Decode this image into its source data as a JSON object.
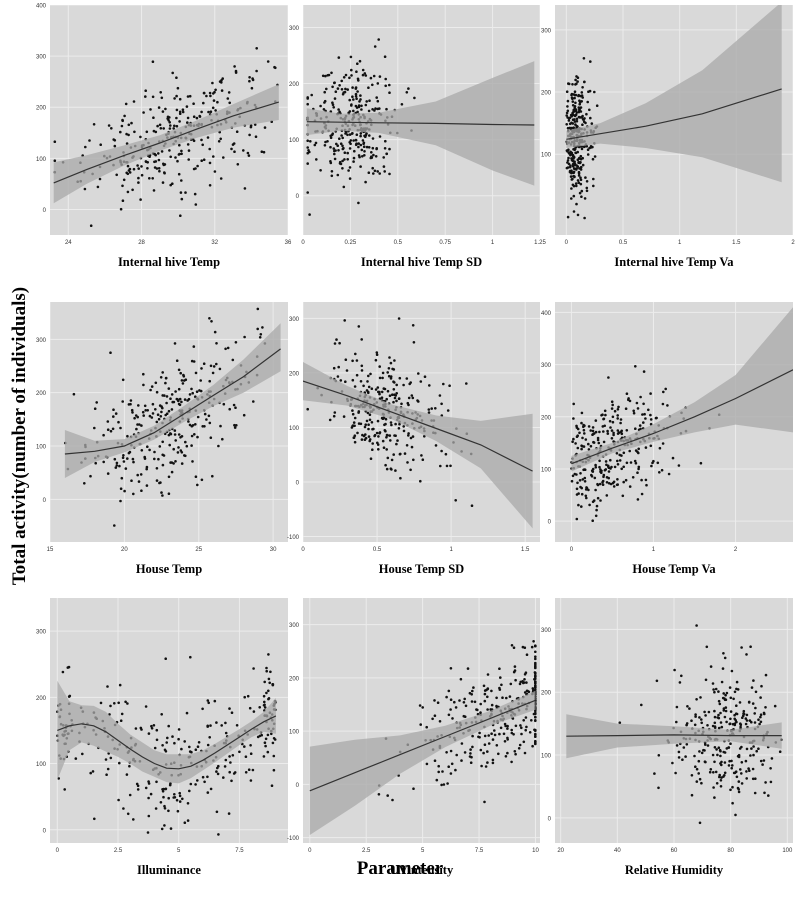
{
  "figure": {
    "global_ylabel": "Total activity(number of individuals)",
    "global_xlabel": "Parameter",
    "colors": {
      "panel_bg": "#d9d9d9",
      "grid": "#ececec",
      "ribbon": "#a8a8a8",
      "line": "#333333",
      "point": "#111111"
    }
  },
  "chart_data": [
    {
      "type": "scatter",
      "title": "",
      "xlabel": "Internal hive Temp",
      "ylabel": "",
      "xlim": [
        23,
        36
      ],
      "ylim": [
        -50,
        400
      ],
      "xticks": [
        24,
        28,
        32,
        36
      ],
      "yticks": [
        0,
        100,
        200,
        300,
        400
      ],
      "n_points": 320,
      "x_center": 30,
      "x_spread": 2.5,
      "resid_sd": 55,
      "fit": {
        "x": [
          23.2,
          25,
          27,
          29,
          31,
          33,
          35.5
        ],
        "y": [
          52,
          78,
          105,
          130,
          157,
          183,
          210
        ],
        "lo": [
          12,
          50,
          85,
          115,
          140,
          160,
          175
        ],
        "hi": [
          92,
          106,
          125,
          145,
          174,
          206,
          245
        ]
      }
    },
    {
      "type": "scatter",
      "title": "",
      "xlabel": "Internal hive Temp SD",
      "ylabel": "",
      "xlim": [
        0,
        1.25
      ],
      "ylim": [
        -70,
        340
      ],
      "xticks": [
        0.0,
        0.25,
        0.5,
        0.75,
        1.0,
        1.25
      ],
      "yticks": [
        0,
        100,
        200,
        300
      ],
      "n_points": 320,
      "x_center": 0.25,
      "x_spread": 0.12,
      "resid_sd": 55,
      "fit": {
        "x": [
          0.02,
          0.2,
          0.4,
          0.7,
          1.0,
          1.22
        ],
        "y": [
          132,
          131,
          130,
          129,
          127,
          126
        ],
        "lo": [
          108,
          116,
          112,
          90,
          45,
          18
        ],
        "hi": [
          156,
          146,
          148,
          168,
          210,
          240
        ]
      }
    },
    {
      "type": "scatter",
      "title": "",
      "xlabel": "Internal hive Temp Va",
      "ylabel": "",
      "xlim": [
        -0.1,
        2.0
      ],
      "ylim": [
        -30,
        340
      ],
      "xticks": [
        0.0,
        0.5,
        1.0,
        1.5,
        2.0
      ],
      "yticks": [
        100,
        200,
        300
      ],
      "n_points": 300,
      "x_center": 0.08,
      "x_spread": 0.06,
      "resid_sd": 50,
      "fit": {
        "x": [
          0.0,
          0.3,
          0.7,
          1.2,
          1.9
        ],
        "y": [
          124,
          133,
          145,
          165,
          205
        ],
        "lo": [
          110,
          117,
          110,
          95,
          55
        ],
        "hi": [
          138,
          150,
          182,
          235,
          345
        ]
      }
    },
    {
      "type": "scatter",
      "title": "",
      "xlabel": "House Temp",
      "ylabel": "",
      "xlim": [
        15,
        31
      ],
      "ylim": [
        -80,
        370
      ],
      "xticks": [
        15,
        20,
        25,
        30
      ],
      "yticks": [
        0,
        100,
        200,
        300
      ],
      "n_points": 320,
      "x_center": 23,
      "x_spread": 3,
      "resid_sd": 55,
      "fit": {
        "x": [
          16,
          18,
          20,
          22,
          24,
          26,
          28,
          30.5
        ],
        "y": [
          85,
          90,
          100,
          125,
          160,
          195,
          230,
          282
        ],
        "lo": [
          40,
          70,
          88,
          112,
          145,
          175,
          200,
          240
        ],
        "hi": [
          130,
          110,
          113,
          138,
          175,
          215,
          262,
          330
        ]
      }
    },
    {
      "type": "scatter",
      "title": "",
      "xlabel": "House Temp SD",
      "ylabel": "",
      "xlim": [
        0.0,
        1.6
      ],
      "ylim": [
        -110,
        330
      ],
      "xticks": [
        0.0,
        0.5,
        1.0,
        1.5
      ],
      "yticks": [
        -100,
        0,
        100,
        200,
        300
      ],
      "n_points": 320,
      "x_center": 0.55,
      "x_spread": 0.2,
      "resid_sd": 55,
      "fit": {
        "x": [
          0.0,
          0.3,
          0.6,
          0.9,
          1.2,
          1.55
        ],
        "y": [
          185,
          158,
          128,
          98,
          68,
          20
        ],
        "lo": [
          150,
          140,
          115,
          75,
          25,
          -85
        ],
        "hi": [
          220,
          176,
          142,
          122,
          112,
          125
        ]
      }
    },
    {
      "type": "scatter",
      "title": "",
      "xlabel": "House Temp Va",
      "ylabel": "",
      "xlim": [
        -0.2,
        2.7
      ],
      "ylim": [
        -40,
        420
      ],
      "xticks": [
        0,
        1,
        2
      ],
      "yticks": [
        0,
        100,
        200,
        300,
        400
      ],
      "n_points": 320,
      "x_center": 0.45,
      "x_spread": 0.45,
      "resid_sd": 50,
      "fit": {
        "x": [
          0.0,
          0.5,
          1.0,
          1.5,
          2.0,
          2.7
        ],
        "y": [
          110,
          140,
          168,
          200,
          235,
          290
        ],
        "lo": [
          95,
          130,
          152,
          170,
          185,
          170
        ],
        "hi": [
          125,
          150,
          186,
          228,
          280,
          410
        ]
      }
    },
    {
      "type": "scatter",
      "title": "",
      "xlabel": "Illuminance",
      "ylabel": "",
      "xlim": [
        -0.3,
        9.5
      ],
      "ylim": [
        -20,
        350
      ],
      "xticks": [
        0.0,
        2.5,
        5.0,
        7.5
      ],
      "yticks": [
        0,
        100,
        200,
        300
      ],
      "n_points": 330,
      "x_center": 5,
      "x_spread": 3.5,
      "resid_sd": 45,
      "fit": {
        "x": [
          0.0,
          0.5,
          1.0,
          1.5,
          2.0,
          2.5,
          3.0,
          3.5,
          4.0,
          4.5,
          5.0,
          5.5,
          6.0,
          6.5,
          7.0,
          7.5,
          8.0,
          8.5,
          9.0
        ],
        "y": [
          150,
          157,
          160,
          157,
          148,
          135,
          122,
          110,
          100,
          93,
          92,
          96,
          105,
          116,
          128,
          140,
          152,
          163,
          172
        ],
        "lo": [
          75,
          120,
          132,
          127,
          118,
          110,
          100,
          88,
          80,
          72,
          70,
          78,
          90,
          102,
          115,
          128,
          140,
          148,
          145
        ],
        "hi": [
          225,
          194,
          188,
          187,
          178,
          160,
          144,
          132,
          120,
          114,
          114,
          114,
          120,
          130,
          141,
          152,
          164,
          178,
          199
        ]
      }
    },
    {
      "type": "scatter",
      "title": "",
      "xlabel": "UVintensity",
      "ylabel": "",
      "xlim": [
        -0.3,
        10.2
      ],
      "ylim": [
        -110,
        350
      ],
      "xticks": [
        0.0,
        2.5,
        5.0,
        7.5,
        10.0
      ],
      "yticks": [
        -100,
        0,
        100,
        200,
        300
      ],
      "n_points": 320,
      "x_center": 8.5,
      "x_spread": 2,
      "resid_sd": 50,
      "fit": {
        "x": [
          0.0,
          2.0,
          4.0,
          6.0,
          8.0,
          10.0
        ],
        "y": [
          -12,
          22,
          56,
          90,
          124,
          158
        ],
        "lo": [
          -95,
          -40,
          20,
          70,
          110,
          140
        ],
        "hi": [
          71,
          84,
          92,
          110,
          138,
          176
        ]
      }
    },
    {
      "type": "scatter",
      "title": "",
      "xlabel": "Relative Humidity",
      "ylabel": "",
      "xlim": [
        18,
        102
      ],
      "ylim": [
        -40,
        350
      ],
      "xticks": [
        20,
        40,
        60,
        80,
        100
      ],
      "yticks": [
        0,
        100,
        200,
        300
      ],
      "n_points": 300,
      "x_center": 78,
      "x_spread": 10,
      "resid_sd": 50,
      "fit": {
        "x": [
          22,
          40,
          60,
          80,
          98
        ],
        "y": [
          130,
          131,
          132,
          131,
          131
        ],
        "lo": [
          95,
          112,
          118,
          122,
          110
        ],
        "hi": [
          165,
          150,
          146,
          140,
          152
        ]
      }
    }
  ]
}
